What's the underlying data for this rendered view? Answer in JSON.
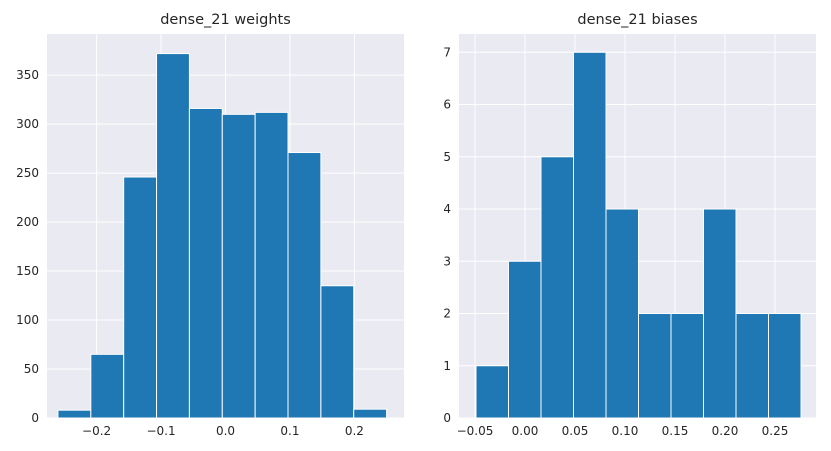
{
  "chart_data": [
    {
      "type": "bar",
      "title": "dense_21 weights",
      "xlabel": "",
      "ylabel": "",
      "grid": true,
      "xlim": [
        -0.277,
        0.277
      ],
      "ylim": [
        0,
        392
      ],
      "xticks": [
        -0.2,
        -0.1,
        0.0,
        0.1,
        0.2
      ],
      "xtick_labels": [
        "−0.2",
        "−0.1",
        "0.0",
        "0.1",
        "0.2"
      ],
      "yticks": [
        0,
        50,
        100,
        150,
        200,
        250,
        300,
        350
      ],
      "ytick_labels": [
        "0",
        "50",
        "100",
        "150",
        "200",
        "250",
        "300",
        "350"
      ],
      "bin_edges": [
        -0.26,
        -0.209,
        -0.158,
        -0.107,
        -0.056,
        -0.005,
        0.046,
        0.097,
        0.148,
        0.199,
        0.25
      ],
      "values": [
        8,
        65,
        246,
        372,
        316,
        310,
        312,
        271,
        135,
        9
      ]
    },
    {
      "type": "bar",
      "title": "dense_21 biases",
      "xlabel": "",
      "ylabel": "",
      "grid": true,
      "xlim": [
        -0.066,
        0.291
      ],
      "ylim": [
        0,
        7.35
      ],
      "xticks": [
        -0.05,
        0.0,
        0.05,
        0.1,
        0.15,
        0.2,
        0.25
      ],
      "xtick_labels": [
        "−0.05",
        "0.00",
        "0.05",
        "0.10",
        "0.15",
        "0.20",
        "0.25"
      ],
      "yticks": [
        0,
        1,
        2,
        3,
        4,
        5,
        6,
        7
      ],
      "ytick_labels": [
        "0",
        "1",
        "2",
        "3",
        "4",
        "5",
        "6",
        "7"
      ],
      "bin_edges": [
        -0.049,
        -0.0165,
        0.016,
        0.0485,
        0.081,
        0.1135,
        0.146,
        0.1785,
        0.211,
        0.2435,
        0.276
      ],
      "values": [
        1,
        3,
        5,
        7,
        4,
        2,
        2,
        4,
        2,
        2
      ]
    }
  ]
}
